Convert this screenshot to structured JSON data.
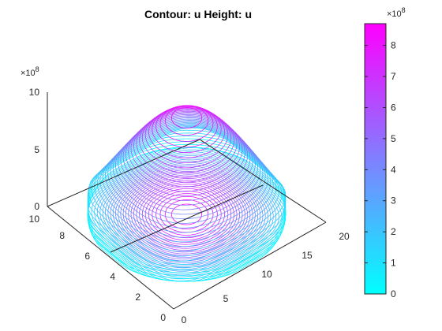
{
  "chart_data": {
    "type": "surface-contour",
    "title": "Contour: u  Height: u",
    "x": {
      "range": [
        0,
        20
      ],
      "ticks": [
        "0",
        "5",
        "10",
        "15",
        "20"
      ]
    },
    "y": {
      "range": [
        0,
        10
      ],
      "ticks": [
        "0",
        "2",
        "4",
        "6",
        "8",
        "10"
      ]
    },
    "z": {
      "range": [
        0,
        10
      ],
      "ticks": [
        "0",
        "5",
        "10"
      ],
      "exponent_base": "×10",
      "exponent_power": "8"
    },
    "surface": {
      "peak_value": 8.7,
      "peak_x": 10,
      "peak_y": 5,
      "contour_levels": 34,
      "unit_scale": 100000000
    },
    "colorbar": {
      "range": [
        0,
        8.7
      ],
      "ticks": [
        "0",
        "1",
        "2",
        "3",
        "4",
        "5",
        "6",
        "7",
        "8"
      ],
      "exponent_base": "×10",
      "exponent_power": "8",
      "colormap": [
        "#00ffff",
        "#ff00ff"
      ]
    },
    "grid": false
  }
}
